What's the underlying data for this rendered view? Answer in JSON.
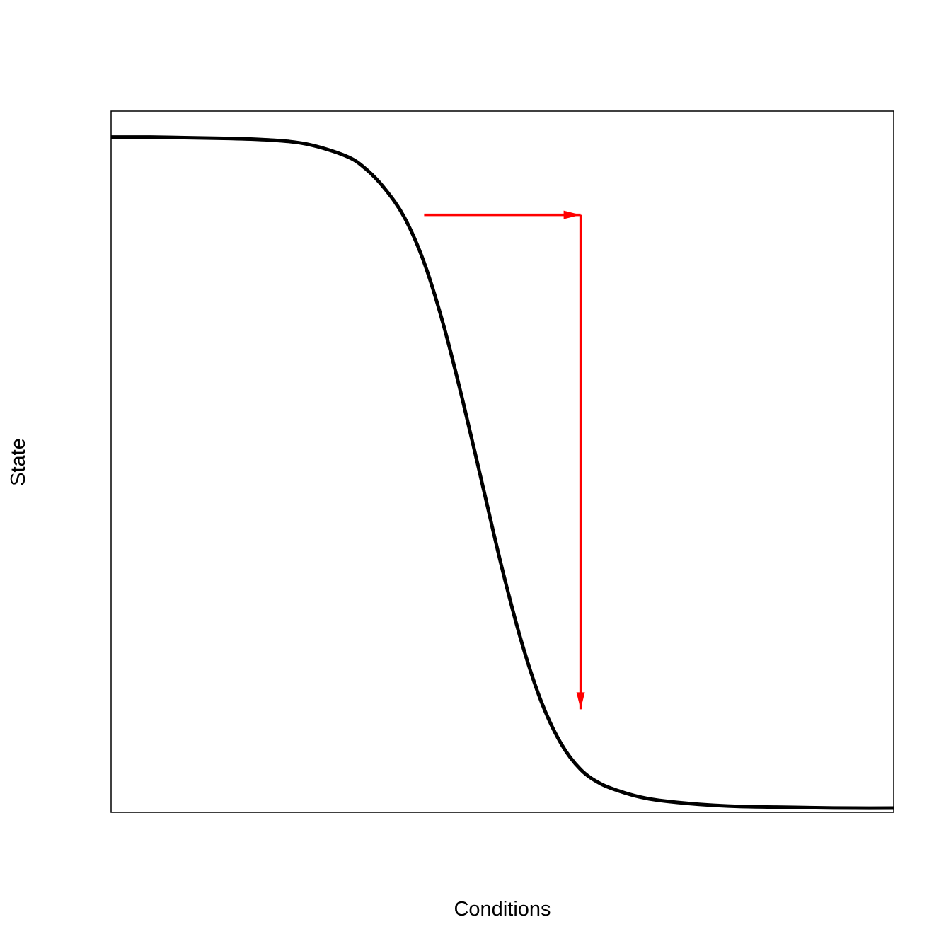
{
  "chart_data": {
    "type": "line",
    "title": "",
    "xlabel": "Conditions",
    "ylabel": "State",
    "xlim": [
      0,
      10
    ],
    "ylim": [
      0,
      1
    ],
    "grid": false,
    "axes_ticks": false,
    "series": [
      {
        "color": "#000000",
        "x": [
          0,
          0.5,
          1,
          1.5,
          2,
          2.5,
          3,
          3.25,
          3.5,
          3.75,
          4,
          4.25,
          4.5,
          4.75,
          5,
          5.25,
          5.5,
          5.75,
          6,
          6.25,
          6.5,
          6.75,
          7,
          7.5,
          8,
          8.5,
          9,
          9.5,
          10
        ],
        "y": [
          0.963,
          0.963,
          0.962,
          0.961,
          0.959,
          0.953,
          0.936,
          0.918,
          0.889,
          0.848,
          0.784,
          0.694,
          0.584,
          0.465,
          0.346,
          0.241,
          0.157,
          0.098,
          0.061,
          0.041,
          0.03,
          0.022,
          0.017,
          0.0115,
          0.0085,
          0.0075,
          0.0065,
          0.006,
          0.006
        ]
      }
    ],
    "annotations": [
      {
        "type": "arrow",
        "color": "#ff0000",
        "from": {
          "x": 4.0,
          "y": 0.852
        },
        "to": {
          "x": 6.0,
          "y": 0.852
        }
      },
      {
        "type": "arrow",
        "color": "#ff0000",
        "from": {
          "x": 6.0,
          "y": 0.852
        },
        "to": {
          "x": 6.0,
          "y": 0.147
        }
      }
    ]
  }
}
